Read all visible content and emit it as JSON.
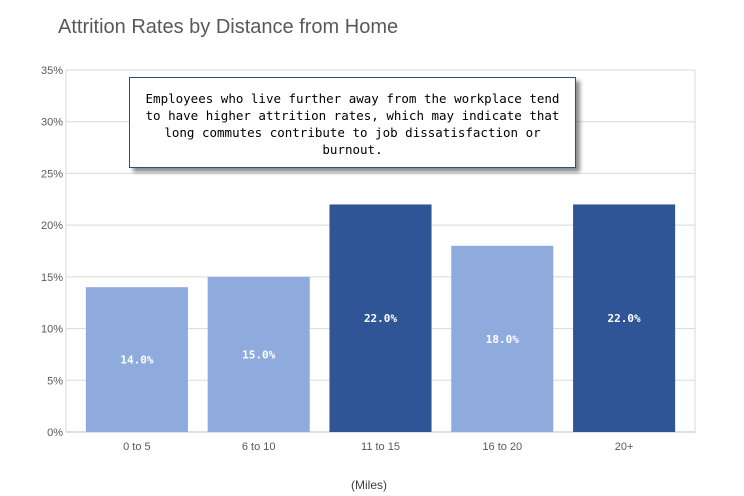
{
  "chart_data": {
    "type": "bar",
    "title": "Attrition Rates by Distance from Home",
    "xlabel": "(Miles)",
    "ylabel": "",
    "categories": [
      "0 to 5",
      "6 to 10",
      "11 to 15",
      "16 to 20",
      "20+"
    ],
    "values": [
      14.0,
      15.0,
      22.0,
      18.0,
      22.0
    ],
    "value_labels": [
      "14.0%",
      "15.0%",
      "22.0%",
      "18.0%",
      "22.0%"
    ],
    "ylim": [
      0,
      35
    ],
    "yticks": [
      0,
      5,
      10,
      15,
      20,
      25,
      30,
      35
    ],
    "ytick_labels": [
      "0%",
      "5%",
      "10%",
      "15%",
      "20%",
      "25%",
      "30%",
      "35%"
    ],
    "grid": true,
    "bar_colors": [
      "#8FAADC",
      "#8FAADC",
      "#2F5597",
      "#8FAADC",
      "#2F5597"
    ],
    "annotation": "Employees who live further away from the workplace tend to have higher attrition rates, which may indicate that long commutes contribute to job dissatisfaction or burnout."
  }
}
